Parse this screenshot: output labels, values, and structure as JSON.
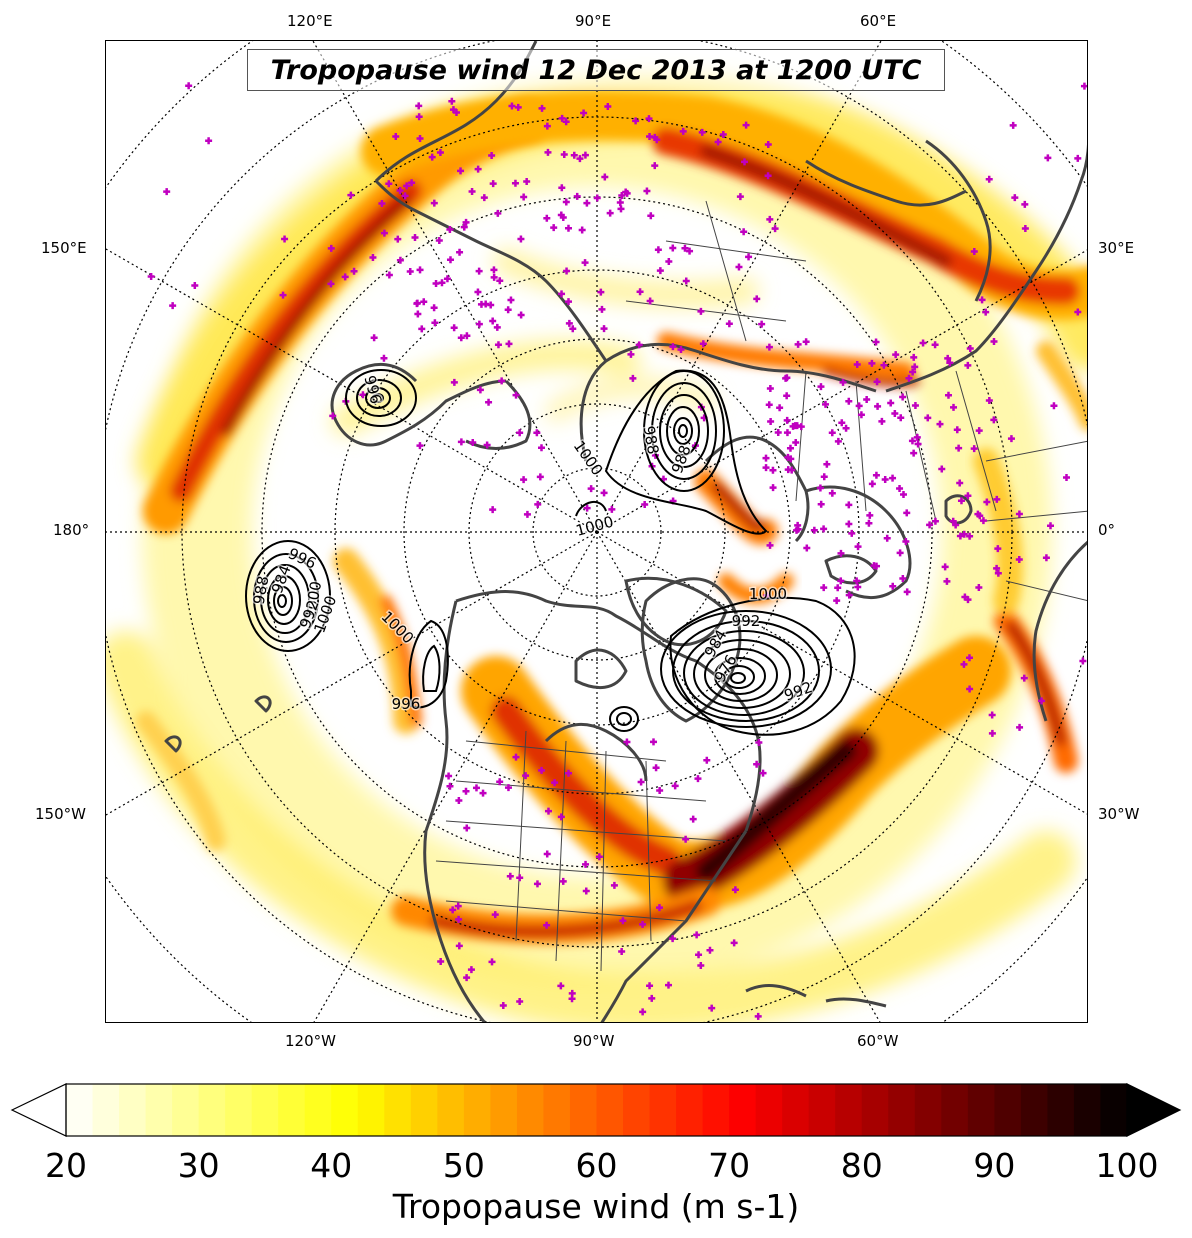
{
  "title": "Tropopause wind 12 Dec 2013 at 1200 UTC",
  "lon_labels": {
    "top": [
      "120°E",
      "90°E",
      "60°E"
    ],
    "bottom": [
      "120°W",
      "90°W",
      "60°W"
    ],
    "left": [
      "150°E",
      "180°",
      "150°W"
    ],
    "right": [
      "30°E",
      "0°",
      "30°W"
    ]
  },
  "contour_labels": [
    "996",
    "1000",
    "1000",
    "1000",
    "996",
    "988",
    "984",
    "992",
    "1000",
    "1000",
    "992",
    "996",
    "1000",
    "984",
    "976",
    "992",
    "988",
    "988"
  ],
  "colorbar": {
    "label": "Tropopause wind (m s-1)",
    "min": 20,
    "max": 100,
    "step": 2,
    "extend": "both",
    "ticks": [
      "20",
      "30",
      "40",
      "50",
      "60",
      "70",
      "80",
      "90",
      "100"
    ],
    "colormap": "hot_r"
  },
  "colors": {
    "coastline": "#444444",
    "station_marker": "#c000c0",
    "contour": "#000000"
  },
  "projection": "north-polar-stereographic",
  "central_longitude": "90°W"
}
